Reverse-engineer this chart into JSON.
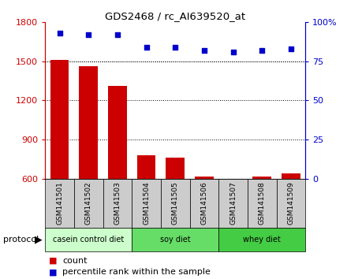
{
  "title": "GDS2468 / rc_AI639520_at",
  "samples": [
    "GSM141501",
    "GSM141502",
    "GSM141503",
    "GSM141504",
    "GSM141505",
    "GSM141506",
    "GSM141507",
    "GSM141508",
    "GSM141509"
  ],
  "counts": [
    1510,
    1460,
    1310,
    780,
    760,
    615,
    600,
    615,
    640
  ],
  "percentiles": [
    93,
    92,
    92,
    84,
    84,
    82,
    81,
    82,
    83
  ],
  "ylim_left": [
    600,
    1800
  ],
  "ylim_right": [
    0,
    100
  ],
  "yticks_left": [
    600,
    900,
    1200,
    1500,
    1800
  ],
  "yticks_right": [
    0,
    25,
    50,
    75,
    100
  ],
  "bar_color": "#cc0000",
  "dot_color": "#0000cc",
  "groups": [
    {
      "label": "casein control diet",
      "start": 0,
      "end": 3,
      "color": "#ccffcc"
    },
    {
      "label": "soy diet",
      "start": 3,
      "end": 6,
      "color": "#66dd66"
    },
    {
      "label": "whey diet",
      "start": 6,
      "end": 9,
      "color": "#44cc44"
    }
  ],
  "protocol_label": "protocol",
  "legend_count_label": "count",
  "legend_pct_label": "percentile rank within the sample",
  "bg_color": "#ffffff",
  "label_box_color": "#cccccc",
  "plot_bg_color": "#ffffff"
}
